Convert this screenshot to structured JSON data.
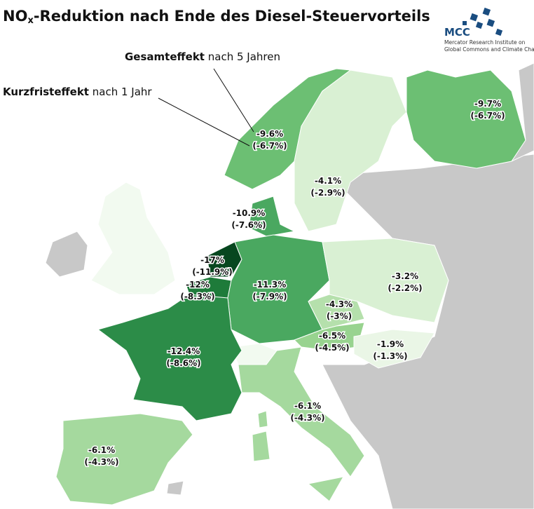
{
  "header": {
    "title_main": "NO",
    "title_sub": "x",
    "title_rest": "-Reduktion nach Ende des Diesel-Steuervorteils"
  },
  "logo": {
    "acronym": "MCC",
    "line1": "Mercator Research Institute on",
    "line2": "Global Commons and Climate Change"
  },
  "annotations": [
    {
      "bold": "Gesamteffekt",
      "rest": " nach 5 Jahren"
    },
    {
      "bold": "Kurzfristeffekt",
      "rest": " nach 1 Jahr"
    }
  ],
  "regions": [
    {
      "total": "-9.6%",
      "short": "(-6.7%)",
      "color": "#6cbf73"
    },
    {
      "total": "-4.1%",
      "short": "(-2.9%)",
      "color": "#d9f0d3"
    },
    {
      "total": "-9.7%",
      "short": "(-6.7%)",
      "color": "#6cbf73"
    },
    {
      "total": "-10.9%",
      "short": "(-7.6%)",
      "color": "#4aa860"
    },
    {
      "total": "-17%",
      "short": "(-11.9%)",
      "color": "#07471f"
    },
    {
      "total": "-12%",
      "short": "(-8.3%)",
      "color": "#1e7b3a"
    },
    {
      "total": "-11.3%",
      "short": "(-7.9%)",
      "color": "#4aa860"
    },
    {
      "total": "-3.2%",
      "short": "(-2.2%)",
      "color": "#d9f0d3"
    },
    {
      "total": "-4.3%",
      "short": "(-3%)",
      "color": "#b5e0ac"
    },
    {
      "total": "-6.5%",
      "short": "(-4.5%)",
      "color": "#98d38f"
    },
    {
      "total": "-1.9%",
      "short": "(-1.3%)",
      "color": "#eaf6e6"
    },
    {
      "total": "-12.4%",
      "short": "(-8.6%)",
      "color": "#2c8c48"
    },
    {
      "total": "-6.1%",
      "short": "(-4.3%)",
      "color": "#a5d99e"
    },
    {
      "total": "-6.1%",
      "short": "(-4.3%)",
      "color": "#a5d99e"
    }
  ]
}
